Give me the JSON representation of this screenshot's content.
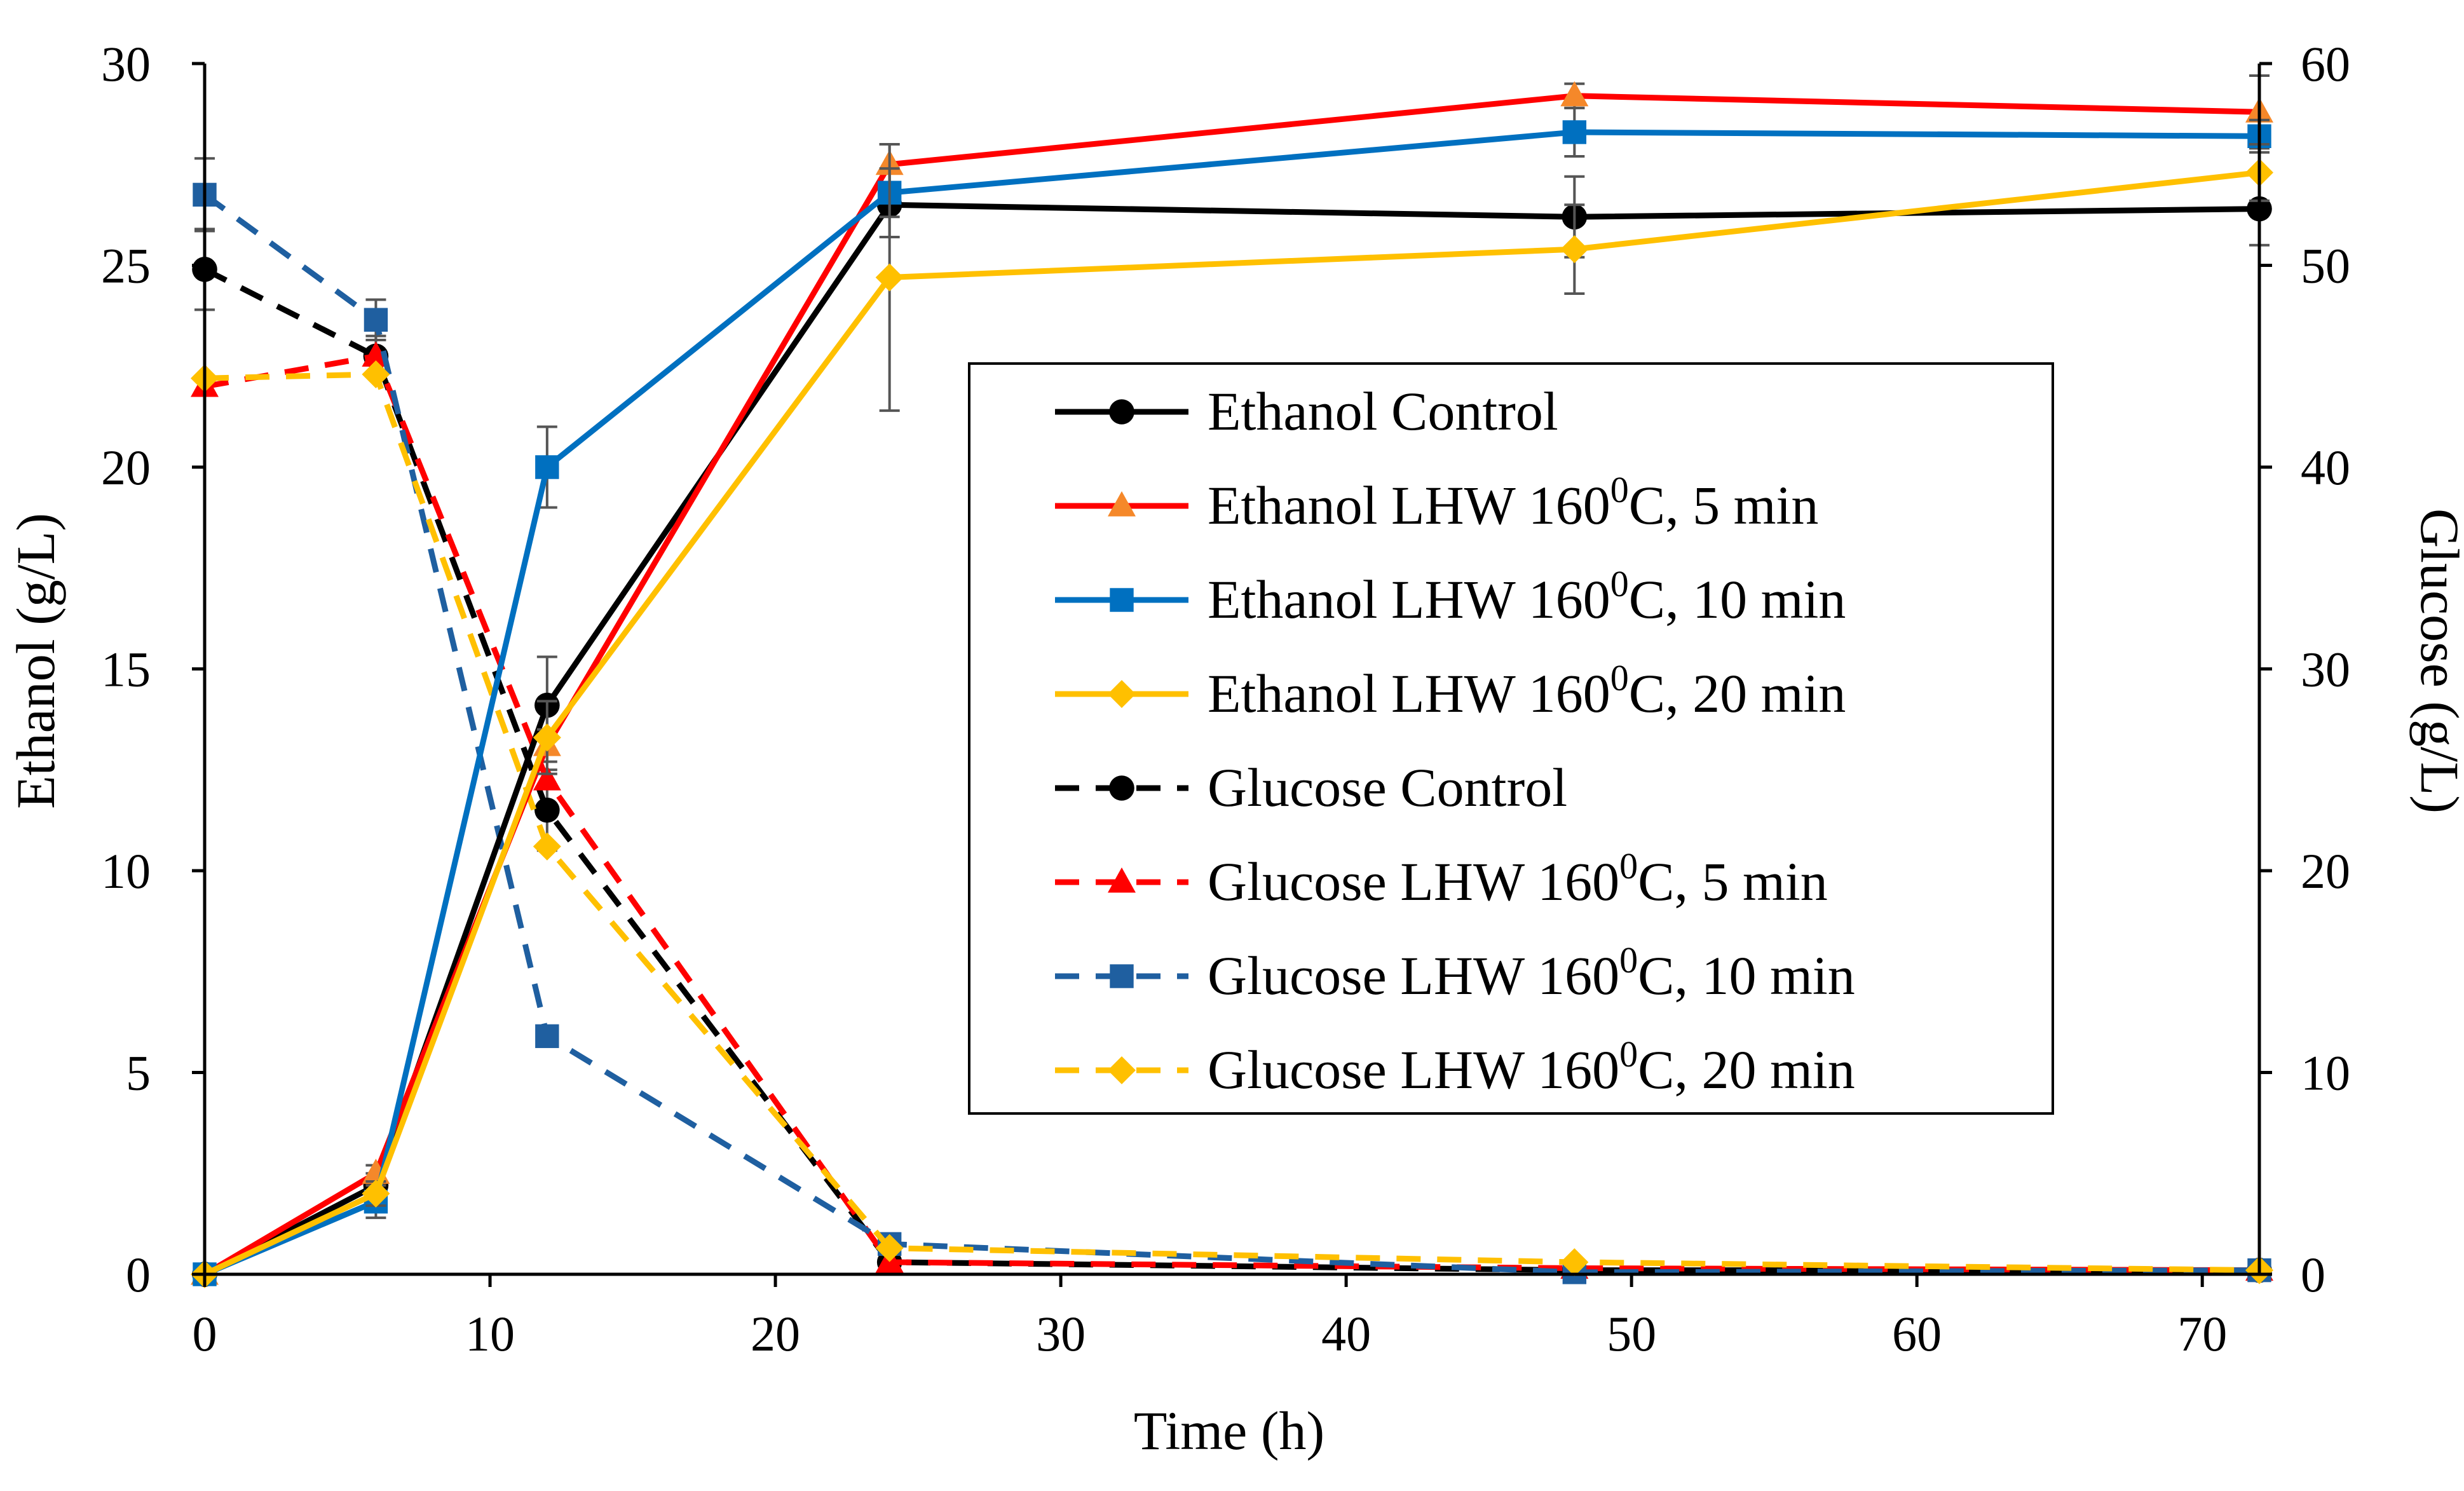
{
  "chart_data": {
    "type": "line",
    "title": "",
    "xlabel": "Time (h)",
    "ylabel": "Ethanol (g/L)",
    "y2label": "Glucose (g/L)",
    "xlim": [
      0,
      72
    ],
    "xticks": [
      0,
      10,
      20,
      30,
      40,
      50,
      60,
      70
    ],
    "ylim": [
      0,
      30
    ],
    "yticks": [
      0,
      5,
      10,
      15,
      20,
      25,
      30
    ],
    "y2lim": [
      0,
      60
    ],
    "y2ticks": [
      0,
      10,
      20,
      30,
      40,
      50,
      60
    ],
    "grid": false,
    "legend_position": "center-right",
    "x": [
      0,
      6,
      12,
      24,
      48,
      72
    ],
    "series": [
      {
        "name": "Ethanol Control",
        "axis": "left",
        "color": "#000000",
        "dash": "solid",
        "marker": "circle",
        "values": [
          0,
          2.2,
          14.1,
          26.5,
          26.2,
          26.4
        ],
        "errors": [
          0,
          0.3,
          1.2,
          0.8,
          1.0,
          0.9
        ]
      },
      {
        "name": "Ethanol LHW 160",
        "sup": "0",
        "suffix": "C, 5 min",
        "axis": "left",
        "color": "#ff0000",
        "markerColor": "#f5882a",
        "dash": "solid",
        "marker": "triangle",
        "values": [
          0,
          2.5,
          13.1,
          27.5,
          29.2,
          28.8
        ],
        "errors": [
          0,
          0.2,
          0.4,
          0.5,
          0.3,
          0.9
        ]
      },
      {
        "name": "Ethanol LHW 160",
        "sup": "0",
        "suffix": "C, 10 min",
        "axis": "left",
        "color": "#0070c0",
        "dash": "solid",
        "marker": "square",
        "values": [
          0,
          1.8,
          20.0,
          26.8,
          28.3,
          28.2
        ],
        "errors": [
          0,
          0.4,
          1.0,
          0.6,
          0.6,
          0.4
        ]
      },
      {
        "name": "Ethanol LHW 160",
        "sup": "0",
        "suffix": "C, 20 min",
        "axis": "left",
        "color": "#ffc000",
        "dash": "solid",
        "marker": "diamond",
        "values": [
          0,
          2.0,
          13.3,
          24.7,
          25.4,
          27.3
        ],
        "errors": [
          0,
          0.3,
          0.9,
          3.3,
          1.1,
          0.7
        ]
      },
      {
        "name": "Glucose Control",
        "axis": "right",
        "color": "#000000",
        "dash": "dashed",
        "marker": "circle",
        "values": [
          49.8,
          45.5,
          23.0,
          0.6,
          0.2,
          0.2
        ],
        "errors": [
          2.0,
          1.0,
          2.0,
          0,
          0,
          0
        ]
      },
      {
        "name": "Glucose LHW 160",
        "sup": "0",
        "suffix": "C, 5 min",
        "axis": "right",
        "color": "#ff0000",
        "dash": "dashed",
        "marker": "triangle",
        "values": [
          44.0,
          45.5,
          24.5,
          0.6,
          0.3,
          0.2
        ],
        "errors": [
          0,
          0,
          0,
          0,
          0,
          0
        ]
      },
      {
        "name": "Glucose LHW 160",
        "sup": "0",
        "suffix": "C, 10 min",
        "axis": "right",
        "color": "#1f5fa0",
        "dash": "dashed",
        "marker": "square",
        "values": [
          53.5,
          47.3,
          11.8,
          1.5,
          0.1,
          0.2
        ],
        "errors": [
          1.8,
          1.0,
          0,
          0,
          0,
          0
        ]
      },
      {
        "name": "Glucose LHW 160",
        "sup": "0",
        "suffix": "C, 20 min",
        "axis": "right",
        "color": "#ffc000",
        "dash": "dashed",
        "marker": "diamond",
        "values": [
          44.4,
          44.6,
          21.2,
          1.3,
          0.6,
          0.2
        ],
        "errors": [
          0,
          0,
          0,
          0,
          0,
          0
        ]
      }
    ]
  }
}
